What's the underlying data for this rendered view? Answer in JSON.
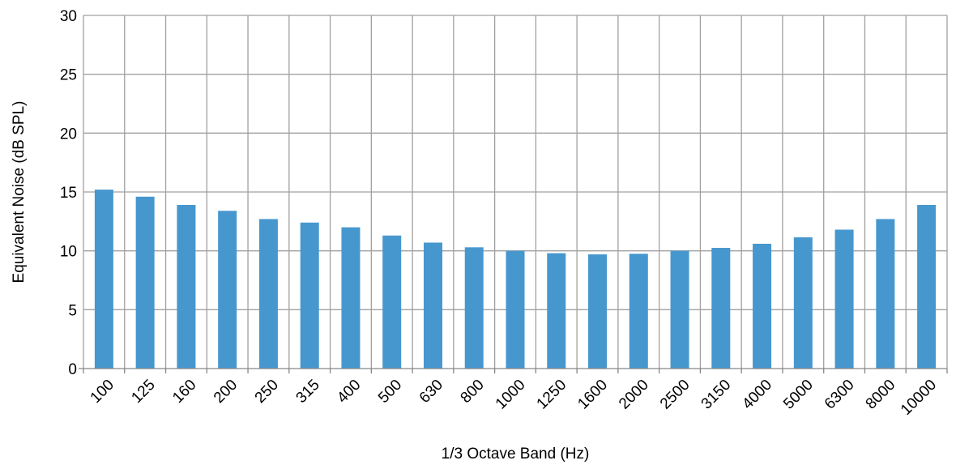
{
  "chart_data": {
    "type": "bar",
    "title": "",
    "xlabel": "1/3 Octave Band (Hz)",
    "ylabel": "Equivalent Noise (dB SPL)",
    "ylim": [
      0,
      30
    ],
    "yticks": [
      0,
      5,
      10,
      15,
      20,
      25,
      30
    ],
    "grid": true,
    "categories": [
      "100",
      "125",
      "160",
      "200",
      "250",
      "315",
      "400",
      "500",
      "630",
      "800",
      "1000",
      "1250",
      "1600",
      "2000",
      "2500",
      "3150",
      "4000",
      "5000",
      "6300",
      "8000",
      "10000"
    ],
    "values": [
      15.2,
      14.6,
      13.9,
      13.4,
      12.7,
      12.4,
      12.0,
      11.3,
      10.7,
      10.3,
      10.0,
      9.8,
      9.7,
      9.75,
      10.0,
      10.25,
      10.6,
      11.15,
      11.8,
      12.7,
      13.9
    ],
    "colors": {
      "bar": "#4797cf",
      "grid": "#a0a0a0",
      "axis": "#868686"
    }
  }
}
